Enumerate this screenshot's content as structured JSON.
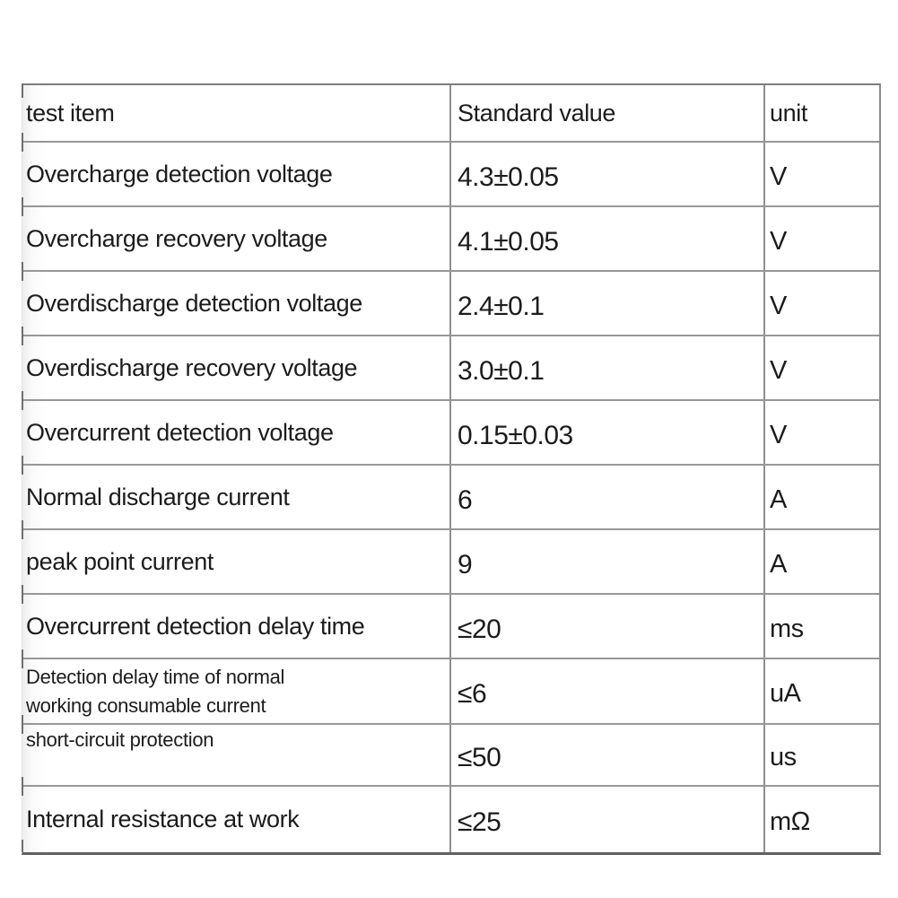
{
  "table": {
    "columns": [
      {
        "label": "test item"
      },
      {
        "label": "Standard value"
      },
      {
        "label": "unit"
      }
    ],
    "rows": [
      {
        "item": "Overcharge detection voltage",
        "value": "4.3±0.05",
        "unit": "V"
      },
      {
        "item": "Overcharge recovery voltage",
        "value": "4.1±0.05",
        "unit": "V"
      },
      {
        "item": "Overdischarge detection voltage",
        "value": "2.4±0.1",
        "unit": "V"
      },
      {
        "item": "Overdischarge recovery voltage",
        "value": "3.0±0.1",
        "unit": "V"
      },
      {
        "item": "Overcurrent detection voltage",
        "value": "0.15±0.03",
        "unit": "V"
      },
      {
        "item": "Normal discharge current",
        "value": "6",
        "unit": "A"
      },
      {
        "item": "peak point current",
        "value": "9",
        "unit": "A"
      },
      {
        "item": "Overcurrent detection delay time",
        "value": "≤20",
        "unit": "ms"
      },
      {
        "item": "Detection delay time of normal\nworking consumable current",
        "value": "≤6",
        "unit": "uA"
      },
      {
        "item": "short-circuit protection",
        "value": "≤50",
        "unit": "us"
      },
      {
        "item": "Internal resistance at work",
        "value": "≤25",
        "unit": "mΩ"
      }
    ],
    "colors": {
      "line": "#8f8f8f",
      "line_dark": "#606060",
      "text": "#1c1c1c",
      "background": "#ffffff"
    }
  }
}
